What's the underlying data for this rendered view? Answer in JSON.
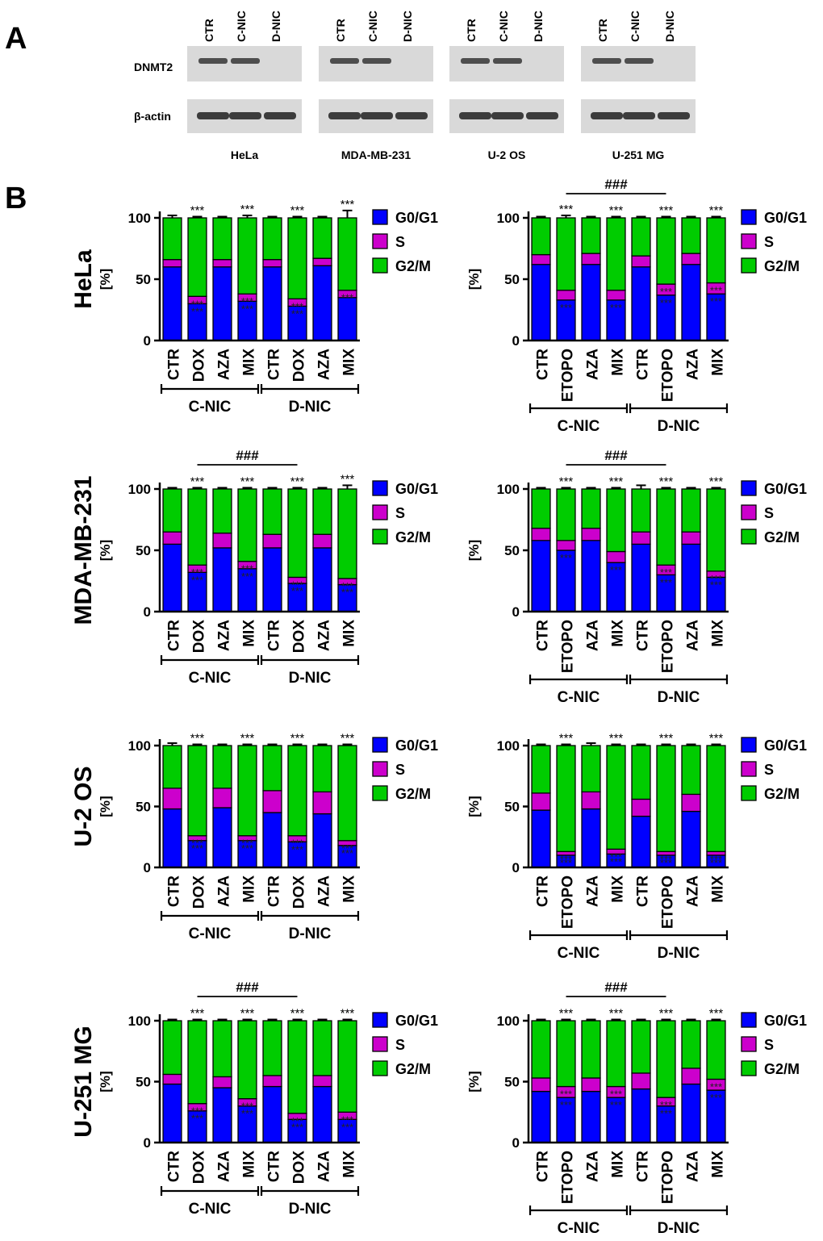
{
  "figure": {
    "panel_a_label": "A",
    "panel_b_label": "B"
  },
  "western_blot": {
    "lane_labels": [
      "CTR",
      "C-NIC",
      "D-NIC"
    ],
    "row_labels": [
      "DNMT2",
      "β-actin"
    ],
    "cell_lines": [
      "HeLa",
      "MDA-MB-231",
      "U-2 OS",
      "U-251 MG"
    ],
    "dnmt2_band_present": [
      [
        1,
        1,
        0
      ],
      [
        1,
        1,
        0
      ],
      [
        1,
        1,
        0
      ],
      [
        1,
        1,
        0
      ]
    ],
    "actin_band_present": [
      [
        1,
        1,
        1
      ],
      [
        1,
        1,
        1
      ],
      [
        1,
        1,
        1
      ],
      [
        1,
        1,
        1
      ]
    ],
    "colors": {
      "background": "#d9d9d9",
      "band": "#2a2a2a"
    }
  },
  "legend": {
    "entries": [
      "G0/G1",
      "S",
      "G2/M"
    ],
    "colors": {
      "G0/G1": "#0000ff",
      "S": "#cc00cc",
      "G2/M": "#00cc00"
    }
  },
  "chart_data": [
    {
      "type": "bar",
      "stacked": true,
      "row_label": "HeLa",
      "ylabel": "[%]",
      "ylim": [
        0,
        100
      ],
      "yticks": [
        0,
        50,
        100
      ],
      "categories": [
        "CTR",
        "DOX",
        "AZA",
        "MIX",
        "CTR",
        "DOX",
        "AZA",
        "MIX"
      ],
      "groups": [
        {
          "label": "C-NIC",
          "from": 0,
          "to": 3
        },
        {
          "label": "D-NIC",
          "from": 4,
          "to": 7
        }
      ],
      "series": [
        {
          "name": "G0/G1",
          "values": [
            60,
            30,
            60,
            32,
            60,
            28,
            61,
            35
          ]
        },
        {
          "name": "S",
          "values": [
            6,
            6,
            6,
            6,
            6,
            6,
            6,
            6
          ]
        },
        {
          "name": "G2/M",
          "values": [
            34,
            64,
            34,
            62,
            34,
            66,
            33,
            59
          ]
        }
      ],
      "error_top": [
        2,
        1,
        1,
        2,
        1,
        1,
        1,
        6
      ],
      "top_marks": [
        "",
        "***",
        "",
        "***",
        "",
        "***",
        "",
        "***"
      ],
      "inner_marks": [
        "",
        "***",
        "",
        "***",
        "",
        "***",
        "",
        "***"
      ],
      "g1_marks": [
        "",
        "***",
        "",
        "***",
        "",
        "***",
        "",
        ""
      ],
      "bracket": null
    },
    {
      "type": "bar",
      "stacked": true,
      "row_label": "HeLa",
      "ylabel": "[%]",
      "ylim": [
        0,
        100
      ],
      "yticks": [
        0,
        50,
        100
      ],
      "categories": [
        "CTR",
        "ETOPO",
        "AZA",
        "MIX",
        "CTR",
        "ETOPO",
        "AZA",
        "MIX"
      ],
      "groups": [
        {
          "label": "C-NIC",
          "from": 0,
          "to": 3
        },
        {
          "label": "D-NIC",
          "from": 4,
          "to": 7
        }
      ],
      "series": [
        {
          "name": "G0/G1",
          "values": [
            62,
            33,
            62,
            33,
            60,
            37,
            62,
            38
          ]
        },
        {
          "name": "S",
          "values": [
            8,
            8,
            9,
            8,
            9,
            9,
            9,
            9
          ]
        },
        {
          "name": "G2/M",
          "values": [
            30,
            59,
            29,
            59,
            31,
            54,
            29,
            53
          ]
        }
      ],
      "error_top": [
        1,
        2,
        1,
        1,
        1,
        1,
        1,
        1
      ],
      "top_marks": [
        "",
        "***",
        "",
        "***",
        "",
        "***",
        "",
        "***"
      ],
      "inner_marks": [
        "",
        "",
        "",
        "",
        "",
        "***",
        "",
        "***"
      ],
      "g1_marks": [
        "",
        "***",
        "",
        "***",
        "",
        "***",
        "",
        "***"
      ],
      "bracket": {
        "from": 1,
        "to": 5,
        "label": "###"
      }
    },
    {
      "type": "bar",
      "stacked": true,
      "row_label": "MDA-MB-231",
      "ylabel": "[%]",
      "ylim": [
        0,
        100
      ],
      "yticks": [
        0,
        50,
        100
      ],
      "categories": [
        "CTR",
        "DOX",
        "AZA",
        "MIX",
        "CTR",
        "DOX",
        "AZA",
        "MIX"
      ],
      "groups": [
        {
          "label": "C-NIC",
          "from": 0,
          "to": 3
        },
        {
          "label": "D-NIC",
          "from": 4,
          "to": 7
        }
      ],
      "series": [
        {
          "name": "G0/G1",
          "values": [
            55,
            32,
            52,
            35,
            52,
            23,
            52,
            22
          ]
        },
        {
          "name": "S",
          "values": [
            10,
            6,
            12,
            6,
            11,
            5,
            11,
            5
          ]
        },
        {
          "name": "G2/M",
          "values": [
            35,
            62,
            36,
            59,
            37,
            72,
            37,
            73
          ]
        }
      ],
      "error_top": [
        1,
        1,
        1,
        1,
        1,
        1,
        1,
        3
      ],
      "top_marks": [
        "",
        "***",
        "",
        "***",
        "",
        "***",
        "",
        "***"
      ],
      "inner_marks": [
        "",
        "***",
        "",
        "***",
        "",
        "***",
        "",
        "***"
      ],
      "g1_marks": [
        "",
        "***",
        "",
        "***",
        "",
        "***",
        "",
        "***"
      ],
      "bracket": {
        "from": 1,
        "to": 5,
        "label": "###"
      }
    },
    {
      "type": "bar",
      "stacked": true,
      "row_label": "MDA-MB-231",
      "ylabel": "[%]",
      "ylim": [
        0,
        100
      ],
      "yticks": [
        0,
        50,
        100
      ],
      "categories": [
        "CTR",
        "ETOPO",
        "AZA",
        "MIX",
        "CTR",
        "ETOPO",
        "AZA",
        "MIX"
      ],
      "groups": [
        {
          "label": "C-NIC",
          "from": 0,
          "to": 3
        },
        {
          "label": "D-NIC",
          "from": 4,
          "to": 7
        }
      ],
      "series": [
        {
          "name": "G0/G1",
          "values": [
            58,
            50,
            58,
            40,
            55,
            30,
            55,
            28
          ]
        },
        {
          "name": "S",
          "values": [
            10,
            8,
            10,
            9,
            10,
            8,
            10,
            5
          ]
        },
        {
          "name": "G2/M",
          "values": [
            32,
            42,
            32,
            51,
            35,
            62,
            35,
            67
          ]
        }
      ],
      "error_top": [
        1,
        1,
        1,
        1,
        3,
        1,
        1,
        1
      ],
      "top_marks": [
        "",
        "***",
        "",
        "***",
        "",
        "***",
        "",
        "***"
      ],
      "inner_marks": [
        "",
        "",
        "",
        "",
        "",
        "***",
        "",
        "***"
      ],
      "g1_marks": [
        "",
        "***",
        "",
        "***",
        "",
        "***",
        "",
        "***"
      ],
      "bracket": {
        "from": 1,
        "to": 5,
        "label": "###"
      }
    },
    {
      "type": "bar",
      "stacked": true,
      "row_label": "U-2 OS",
      "ylabel": "[%]",
      "ylim": [
        0,
        100
      ],
      "yticks": [
        0,
        50,
        100
      ],
      "categories": [
        "CTR",
        "DOX",
        "AZA",
        "MIX",
        "CTR",
        "DOX",
        "AZA",
        "MIX"
      ],
      "groups": [
        {
          "label": "C-NIC",
          "from": 0,
          "to": 3
        },
        {
          "label": "D-NIC",
          "from": 4,
          "to": 7
        }
      ],
      "series": [
        {
          "name": "G0/G1",
          "values": [
            48,
            22,
            49,
            22,
            45,
            21,
            44,
            18
          ]
        },
        {
          "name": "S",
          "values": [
            17,
            4,
            16,
            4,
            18,
            5,
            18,
            4
          ]
        },
        {
          "name": "G2/M",
          "values": [
            35,
            74,
            35,
            74,
            37,
            74,
            38,
            78
          ]
        }
      ],
      "error_top": [
        2,
        1,
        1,
        1,
        1,
        1,
        1,
        1
      ],
      "top_marks": [
        "",
        "***",
        "",
        "***",
        "",
        "***",
        "",
        "***"
      ],
      "inner_marks": [
        "",
        "***",
        "",
        "***",
        "",
        "***",
        "",
        "***"
      ],
      "g1_marks": [
        "",
        "***",
        "",
        "***",
        "",
        "***",
        "",
        "***"
      ],
      "bracket": null
    },
    {
      "type": "bar",
      "stacked": true,
      "row_label": "U-2 OS",
      "ylabel": "[%]",
      "ylim": [
        0,
        100
      ],
      "yticks": [
        0,
        50,
        100
      ],
      "categories": [
        "CTR",
        "ETOPO",
        "AZA",
        "MIX",
        "CTR",
        "ETOPO",
        "AZA",
        "MIX"
      ],
      "groups": [
        {
          "label": "C-NIC",
          "from": 0,
          "to": 3
        },
        {
          "label": "D-NIC",
          "from": 4,
          "to": 7
        }
      ],
      "series": [
        {
          "name": "G0/G1",
          "values": [
            47,
            10,
            48,
            11,
            42,
            10,
            46,
            10
          ]
        },
        {
          "name": "S",
          "values": [
            14,
            3,
            14,
            4,
            14,
            3,
            14,
            3
          ]
        },
        {
          "name": "G2/M",
          "values": [
            39,
            87,
            38,
            85,
            44,
            87,
            40,
            87
          ]
        }
      ],
      "error_top": [
        1,
        1,
        2,
        1,
        1,
        1,
        1,
        1
      ],
      "top_marks": [
        "",
        "***",
        "",
        "***",
        "",
        "***",
        "",
        "***"
      ],
      "inner_marks": [
        "",
        "***",
        "",
        "***",
        "",
        "***",
        "",
        "***"
      ],
      "g1_marks": [
        "",
        "***",
        "",
        "***",
        "",
        "***",
        "",
        "***"
      ],
      "bracket": null
    },
    {
      "type": "bar",
      "stacked": true,
      "row_label": "U-251 MG",
      "ylabel": "[%]",
      "ylim": [
        0,
        100
      ],
      "yticks": [
        0,
        50,
        100
      ],
      "categories": [
        "CTR",
        "DOX",
        "AZA",
        "MIX",
        "CTR",
        "DOX",
        "AZA",
        "MIX"
      ],
      "groups": [
        {
          "label": "C-NIC",
          "from": 0,
          "to": 3
        },
        {
          "label": "D-NIC",
          "from": 4,
          "to": 7
        }
      ],
      "series": [
        {
          "name": "G0/G1",
          "values": [
            48,
            26,
            45,
            30,
            46,
            19,
            46,
            19
          ]
        },
        {
          "name": "S",
          "values": [
            8,
            6,
            9,
            6,
            9,
            5,
            9,
            6
          ]
        },
        {
          "name": "G2/M",
          "values": [
            44,
            68,
            46,
            64,
            45,
            76,
            45,
            75
          ]
        }
      ],
      "error_top": [
        1,
        1,
        1,
        1,
        1,
        1,
        1,
        1
      ],
      "top_marks": [
        "",
        "***",
        "",
        "***",
        "",
        "***",
        "",
        "***"
      ],
      "inner_marks": [
        "",
        "***",
        "",
        "***",
        "",
        "***",
        "",
        "***"
      ],
      "g1_marks": [
        "",
        "***",
        "",
        "***",
        "",
        "***",
        "",
        "***"
      ],
      "bracket": {
        "from": 1,
        "to": 5,
        "label": "###"
      }
    },
    {
      "type": "bar",
      "stacked": true,
      "row_label": "U-251 MG",
      "ylabel": "[%]",
      "ylim": [
        0,
        100
      ],
      "yticks": [
        0,
        50,
        100
      ],
      "categories": [
        "CTR",
        "ETOPO",
        "AZA",
        "MIX",
        "CTR",
        "ETOPO",
        "AZA",
        "MIX"
      ],
      "groups": [
        {
          "label": "C-NIC",
          "from": 0,
          "to": 3
        },
        {
          "label": "D-NIC",
          "from": 4,
          "to": 7
        }
      ],
      "series": [
        {
          "name": "G0/G1",
          "values": [
            42,
            37,
            42,
            37,
            44,
            30,
            48,
            43
          ]
        },
        {
          "name": "S",
          "values": [
            11,
            9,
            11,
            9,
            13,
            7,
            13,
            9
          ]
        },
        {
          "name": "G2/M",
          "values": [
            47,
            54,
            47,
            54,
            43,
            63,
            39,
            48
          ]
        }
      ],
      "error_top": [
        1,
        1,
        1,
        1,
        1,
        1,
        1,
        1
      ],
      "top_marks": [
        "",
        "***",
        "",
        "***",
        "",
        "***",
        "",
        "***"
      ],
      "inner_marks": [
        "",
        "***",
        "",
        "***",
        "",
        "***",
        "",
        "***"
      ],
      "g1_marks": [
        "",
        "***",
        "",
        "***",
        "",
        "***",
        "",
        "***"
      ],
      "bracket": {
        "from": 1,
        "to": 5,
        "label": "###"
      }
    }
  ]
}
